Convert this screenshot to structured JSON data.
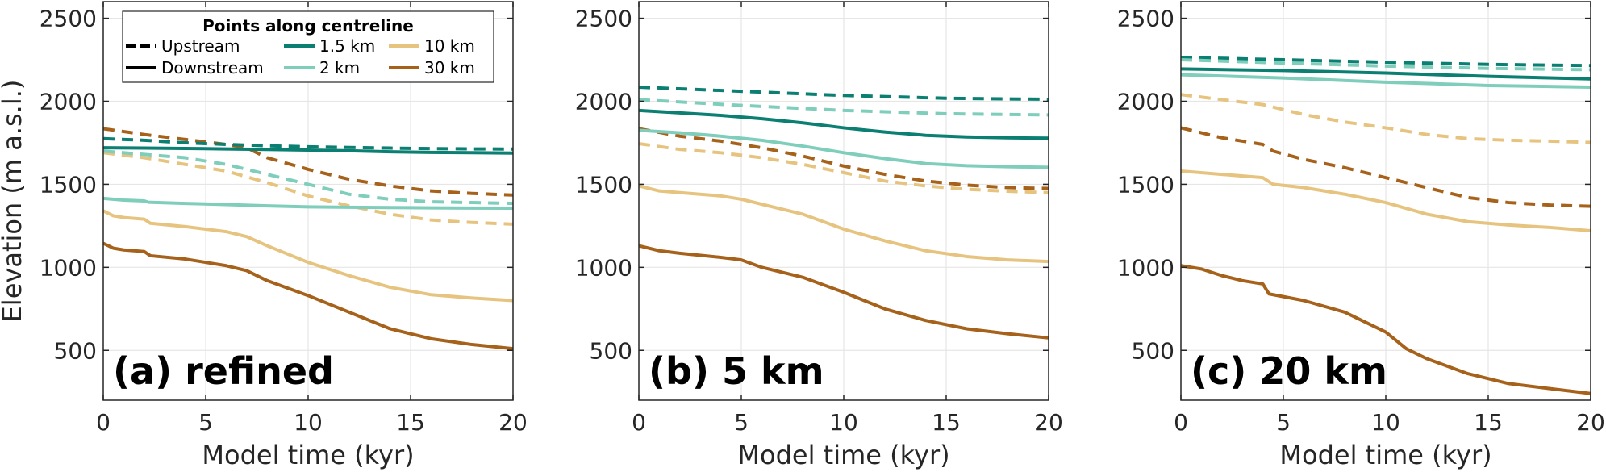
{
  "chart_data": {
    "type": "line",
    "ylabel": "Elevation (m a.s.l.)",
    "legend": {
      "title": "Points along centreline",
      "placement": "top-left",
      "entries": [
        {
          "label": "Upstream",
          "style": "dashed",
          "color": "#000000"
        },
        {
          "label": "Downstream",
          "style": "solid",
          "color": "#000000"
        },
        {
          "label": "1.5 km",
          "style": "solid",
          "color": "#0b7f72"
        },
        {
          "label": "2 km",
          "style": "solid",
          "color": "#7fcdbb"
        },
        {
          "label": "10 km",
          "style": "solid",
          "color": "#e6c47f"
        },
        {
          "label": "30 km",
          "style": "solid",
          "color": "#a6611a"
        }
      ]
    },
    "colors": {
      "1.5 km": "#0b7f72",
      "2 km": "#7fcdbb",
      "10 km": "#e6c47f",
      "30 km": "#a6611a"
    },
    "grid": true,
    "xlim": [
      0,
      20
    ],
    "ylim": [
      200,
      2600
    ],
    "xticks": [
      "0",
      "5",
      "10",
      "15",
      "20"
    ],
    "yticks": [
      "500",
      "1000",
      "1500",
      "2000",
      "2500"
    ],
    "panels": [
      {
        "label": "(a) refined",
        "xlabel": "Model time (kyr)",
        "show_ylabel": true,
        "show_legend": true,
        "series": [
          {
            "point": "30 km",
            "position": "upstream",
            "x": [
              0,
              2,
              4,
              6,
              7,
              8,
              10,
              12,
              14,
              16,
              18,
              20
            ],
            "y": [
              1835,
              1800,
              1770,
              1740,
              1720,
              1660,
              1590,
              1530,
              1490,
              1460,
              1445,
              1435
            ]
          },
          {
            "point": "10 km",
            "position": "upstream",
            "x": [
              0,
              2,
              4,
              6,
              8,
              10,
              12,
              14,
              16,
              18,
              20
            ],
            "y": [
              1690,
              1660,
              1620,
              1580,
              1510,
              1430,
              1370,
              1320,
              1285,
              1270,
              1260
            ]
          },
          {
            "point": "2 km",
            "position": "upstream",
            "x": [
              0,
              2,
              4,
              6,
              8,
              10,
              12,
              14,
              16,
              18,
              20
            ],
            "y": [
              1700,
              1680,
              1660,
              1620,
              1560,
              1500,
              1440,
              1410,
              1395,
              1390,
              1385
            ]
          },
          {
            "point": "1.5 km",
            "position": "upstream",
            "x": [
              0,
              2,
              4,
              6,
              8,
              10,
              12,
              14,
              16,
              18,
              20
            ],
            "y": [
              1775,
              1765,
              1750,
              1740,
              1732,
              1726,
              1722,
              1718,
              1715,
              1713,
              1712
            ]
          },
          {
            "point": "1.5 km",
            "position": "downstream",
            "x": [
              0,
              2,
              4,
              6,
              8,
              10,
              12,
              14,
              16,
              18,
              20
            ],
            "y": [
              1720,
              1718,
              1716,
              1713,
              1710,
              1706,
              1702,
              1696,
              1692,
              1690,
              1688
            ]
          },
          {
            "point": "2 km",
            "position": "downstream",
            "x": [
              0,
              1,
              2,
              2.2,
              4,
              6,
              8,
              10,
              12,
              14,
              16,
              18,
              20
            ],
            "y": [
              1415,
              1405,
              1400,
              1392,
              1385,
              1378,
              1370,
              1364,
              1362,
              1360,
              1358,
              1357,
              1356
            ]
          },
          {
            "point": "10 km",
            "position": "downstream",
            "x": [
              0,
              0.5,
              1,
              2,
              2.3,
              4,
              6,
              7,
              8,
              10,
              12,
              14,
              16,
              18,
              20
            ],
            "y": [
              1340,
              1310,
              1300,
              1290,
              1265,
              1245,
              1215,
              1185,
              1130,
              1030,
              950,
              880,
              835,
              815,
              800
            ]
          },
          {
            "point": "30 km",
            "position": "downstream",
            "x": [
              0,
              0.5,
              1,
              2,
              2.3,
              4,
              6,
              7,
              8,
              10,
              12,
              14,
              16,
              18,
              20
            ],
            "y": [
              1145,
              1115,
              1105,
              1095,
              1070,
              1050,
              1010,
              980,
              920,
              830,
              730,
              630,
              570,
              535,
              510
            ]
          }
        ]
      },
      {
        "label": "(b) 5 km",
        "xlabel": "Model time (kyr)",
        "show_ylabel": false,
        "show_legend": false,
        "series": [
          {
            "point": "1.5 km",
            "position": "upstream",
            "x": [
              0,
              5,
              10,
              15,
              20
            ],
            "y": [
              2085,
              2060,
              2035,
              2018,
              2012
            ]
          },
          {
            "point": "2 km",
            "position": "upstream",
            "x": [
              0,
              5,
              10,
              15,
              20
            ],
            "y": [
              2010,
              1975,
              1945,
              1925,
              1918
            ]
          },
          {
            "point": "30 km",
            "position": "upstream",
            "x": [
              0,
              2,
              4,
              6,
              8,
              10,
              12,
              14,
              16,
              18,
              20
            ],
            "y": [
              1835,
              1790,
              1760,
              1720,
              1670,
              1610,
              1560,
              1520,
              1495,
              1480,
              1475
            ]
          },
          {
            "point": "10 km",
            "position": "upstream",
            "x": [
              0,
              2,
              4,
              6,
              8,
              10,
              12,
              14,
              16,
              18,
              20
            ],
            "y": [
              1745,
              1710,
              1690,
              1660,
              1620,
              1570,
              1520,
              1490,
              1470,
              1458,
              1450
            ]
          },
          {
            "point": "1.5 km",
            "position": "downstream",
            "x": [
              0,
              2,
              4,
              6,
              8,
              10,
              12,
              14,
              16,
              18,
              20
            ],
            "y": [
              1945,
              1930,
              1915,
              1895,
              1870,
              1840,
              1815,
              1795,
              1785,
              1780,
              1778
            ]
          },
          {
            "point": "2 km",
            "position": "downstream",
            "x": [
              0,
              2,
              4,
              6,
              8,
              10,
              12,
              14,
              16,
              18,
              20
            ],
            "y": [
              1825,
              1810,
              1790,
              1765,
              1730,
              1690,
              1655,
              1625,
              1612,
              1606,
              1602
            ]
          },
          {
            "point": "10 km",
            "position": "downstream",
            "x": [
              0,
              1,
              2,
              4,
              5,
              6,
              8,
              10,
              12,
              14,
              16,
              18,
              20
            ],
            "y": [
              1490,
              1460,
              1450,
              1430,
              1410,
              1380,
              1320,
              1230,
              1160,
              1100,
              1065,
              1045,
              1035
            ]
          },
          {
            "point": "30 km",
            "position": "downstream",
            "x": [
              0,
              1,
              2,
              4,
              5,
              6,
              8,
              10,
              12,
              14,
              16,
              18,
              20
            ],
            "y": [
              1130,
              1100,
              1085,
              1060,
              1045,
              1000,
              940,
              850,
              750,
              680,
              630,
              600,
              575
            ]
          }
        ]
      },
      {
        "label": "(c) 20 km",
        "xlabel": "Model time (kyr)",
        "show_ylabel": false,
        "show_legend": false,
        "series": [
          {
            "point": "1.5 km",
            "position": "upstream",
            "x": [
              0,
              5,
              10,
              15,
              20
            ],
            "y": [
              2265,
              2250,
              2235,
              2222,
              2215
            ]
          },
          {
            "point": "2 km",
            "position": "upstream",
            "x": [
              0,
              5,
              10,
              15,
              20
            ],
            "y": [
              2250,
              2230,
              2212,
              2198,
              2190
            ]
          },
          {
            "point": "1.5 km",
            "position": "downstream",
            "x": [
              0,
              5,
              10,
              15,
              20
            ],
            "y": [
              2195,
              2185,
              2170,
              2150,
              2135
            ]
          },
          {
            "point": "2 km",
            "position": "downstream",
            "x": [
              0,
              5,
              10,
              15,
              20
            ],
            "y": [
              2160,
              2140,
              2115,
              2095,
              2085
            ]
          },
          {
            "point": "10 km",
            "position": "upstream",
            "x": [
              0,
              2,
              4,
              5,
              6,
              8,
              10,
              12,
              14,
              16,
              18,
              20
            ],
            "y": [
              2040,
              2010,
              1980,
              1950,
              1920,
              1875,
              1840,
              1800,
              1775,
              1765,
              1760,
              1752
            ]
          },
          {
            "point": "30 km",
            "position": "upstream",
            "x": [
              0,
              2,
              4,
              4.5,
              6,
              8,
              10,
              12,
              14,
              16,
              18,
              20
            ],
            "y": [
              1840,
              1780,
              1740,
              1700,
              1650,
              1600,
              1540,
              1480,
              1420,
              1390,
              1375,
              1368
            ]
          },
          {
            "point": "10 km",
            "position": "downstream",
            "x": [
              0,
              2,
              4,
              4.5,
              6,
              8,
              10,
              12,
              14,
              16,
              18,
              20
            ],
            "y": [
              1580,
              1560,
              1540,
              1500,
              1480,
              1440,
              1390,
              1320,
              1275,
              1255,
              1240,
              1220
            ]
          },
          {
            "point": "30 km",
            "position": "downstream",
            "x": [
              0,
              1,
              2,
              3,
              4,
              4.3,
              6,
              8,
              10,
              11,
              12,
              14,
              16,
              18,
              20
            ],
            "y": [
              1010,
              990,
              950,
              920,
              900,
              840,
              800,
              730,
              610,
              510,
              450,
              360,
              300,
              270,
              240
            ]
          }
        ]
      }
    ]
  }
}
